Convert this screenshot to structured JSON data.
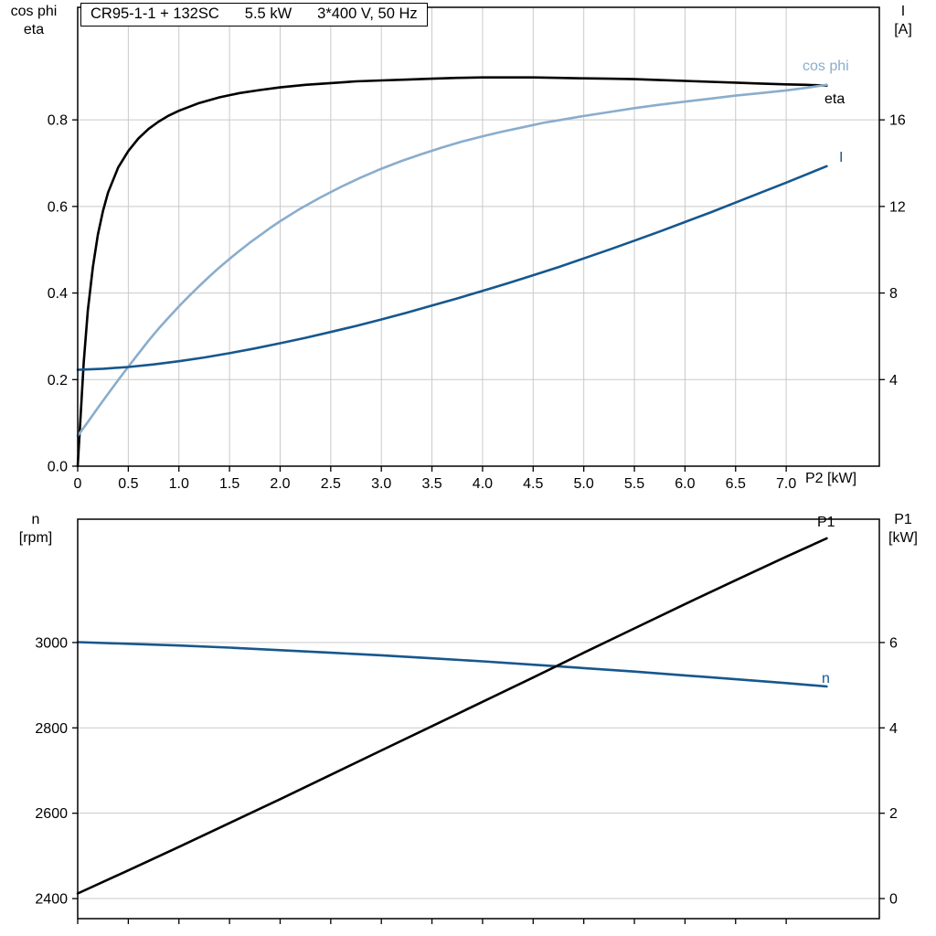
{
  "title_box": {
    "model": "CR95-1-1 + 132SC",
    "power": "5.5 kW",
    "supply": "3*400 V, 50 Hz"
  },
  "axis_headers": {
    "top_left_line1": "cos phi",
    "top_left_line2": "eta",
    "top_right_line1": "I",
    "top_right_line2": "[A]",
    "x_axis_label": "P2 [kW]",
    "bottom_left_line1": "n",
    "bottom_left_line2": "[rpm]",
    "bottom_right_line1": "P1",
    "bottom_right_line2": "[kW]"
  },
  "colors": {
    "eta": "#000000",
    "cos_phi": "#8aadcc",
    "current": "#16578e",
    "speed": "#16578e",
    "p1": "#000000",
    "grid": "#c9c9c9",
    "frame": "#000000",
    "background": "#ffffff"
  },
  "chart_data": [
    {
      "type": "line",
      "title": "CR95-1-1 + 132SC 5.5 kW 3*400 V, 50 Hz",
      "xlabel": "P2 [kW]",
      "x_range": [
        0,
        7.92
      ],
      "x_ticks": [
        0,
        0.5,
        1,
        1.5,
        2,
        2.5,
        3,
        3.5,
        4,
        4.5,
        5,
        5.5,
        6,
        6.5,
        7
      ],
      "x_tick_labels": [
        "0",
        "0.5",
        "1.0",
        "1.5",
        "2.0",
        "2.5",
        "3.0",
        "3.5",
        "4.0",
        "4.5",
        "5.0",
        "5.5",
        "6.0",
        "6.5",
        "7.0"
      ],
      "left_axis": {
        "label": "cos phi / eta",
        "range": [
          0,
          1.06
        ],
        "ticks": [
          0,
          0.2,
          0.4,
          0.6,
          0.8
        ],
        "tick_labels": [
          "0.0",
          "0.2",
          "0.4",
          "0.6",
          "0.8"
        ]
      },
      "right_axis": {
        "label": "I [A]",
        "range": [
          0,
          21.2
        ],
        "ticks": [
          4,
          8,
          12,
          16
        ],
        "tick_labels": [
          "4",
          "8",
          "12",
          "16"
        ]
      },
      "grid": {
        "vertical": true,
        "horizontal": true
      },
      "legend_position": "right-inline",
      "series": [
        {
          "name": "eta",
          "axis": "left",
          "color": "#000000",
          "points": [
            [
              0,
              0
            ],
            [
              0.03,
              0.12
            ],
            [
              0.06,
              0.24
            ],
            [
              0.1,
              0.36
            ],
            [
              0.15,
              0.46
            ],
            [
              0.2,
              0.535
            ],
            [
              0.25,
              0.59
            ],
            [
              0.3,
              0.632
            ],
            [
              0.4,
              0.69
            ],
            [
              0.5,
              0.728
            ],
            [
              0.6,
              0.757
            ],
            [
              0.7,
              0.779
            ],
            [
              0.8,
              0.796
            ],
            [
              0.9,
              0.81
            ],
            [
              1,
              0.821
            ],
            [
              1.2,
              0.839
            ],
            [
              1.4,
              0.852
            ],
            [
              1.6,
              0.862
            ],
            [
              1.8,
              0.869
            ],
            [
              2,
              0.875
            ],
            [
              2.25,
              0.881
            ],
            [
              2.5,
              0.885
            ],
            [
              2.75,
              0.889
            ],
            [
              3,
              0.891
            ],
            [
              3.25,
              0.893
            ],
            [
              3.5,
              0.895
            ],
            [
              3.75,
              0.897
            ],
            [
              4,
              0.898
            ],
            [
              4.25,
              0.898
            ],
            [
              4.5,
              0.898
            ],
            [
              4.75,
              0.897
            ],
            [
              5,
              0.896
            ],
            [
              5.25,
              0.895
            ],
            [
              5.5,
              0.894
            ],
            [
              5.75,
              0.892
            ],
            [
              6,
              0.89
            ],
            [
              6.25,
              0.888
            ],
            [
              6.5,
              0.886
            ],
            [
              6.75,
              0.884
            ],
            [
              7,
              0.882
            ],
            [
              7.2,
              0.881
            ],
            [
              7.4,
              0.879
            ]
          ]
        },
        {
          "name": "cos phi",
          "axis": "left",
          "color": "#8aadcc",
          "points": [
            [
              0,
              0.07
            ],
            [
              0.1,
              0.102
            ],
            [
              0.2,
              0.135
            ],
            [
              0.3,
              0.167
            ],
            [
              0.4,
              0.199
            ],
            [
              0.5,
              0.23
            ],
            [
              0.6,
              0.26
            ],
            [
              0.7,
              0.29
            ],
            [
              0.8,
              0.318
            ],
            [
              0.9,
              0.344
            ],
            [
              1,
              0.369
            ],
            [
              1.1,
              0.393
            ],
            [
              1.2,
              0.416
            ],
            [
              1.3,
              0.438
            ],
            [
              1.4,
              0.459
            ],
            [
              1.5,
              0.479
            ],
            [
              1.6,
              0.498
            ],
            [
              1.7,
              0.516
            ],
            [
              1.8,
              0.533
            ],
            [
              1.9,
              0.55
            ],
            [
              2,
              0.566
            ],
            [
              2.2,
              0.595
            ],
            [
              2.4,
              0.621
            ],
            [
              2.6,
              0.645
            ],
            [
              2.8,
              0.667
            ],
            [
              3,
              0.687
            ],
            [
              3.2,
              0.705
            ],
            [
              3.4,
              0.721
            ],
            [
              3.6,
              0.736
            ],
            [
              3.8,
              0.75
            ],
            [
              4,
              0.762
            ],
            [
              4.2,
              0.773
            ],
            [
              4.4,
              0.783
            ],
            [
              4.6,
              0.793
            ],
            [
              4.8,
              0.801
            ],
            [
              5,
              0.809
            ],
            [
              5.25,
              0.818
            ],
            [
              5.5,
              0.827
            ],
            [
              5.75,
              0.835
            ],
            [
              6,
              0.842
            ],
            [
              6.25,
              0.849
            ],
            [
              6.5,
              0.856
            ],
            [
              6.75,
              0.862
            ],
            [
              7,
              0.868
            ],
            [
              7.2,
              0.874
            ],
            [
              7.4,
              0.881
            ]
          ]
        },
        {
          "name": "I",
          "axis": "right",
          "color": "#16578e",
          "points": [
            [
              0,
              4.45
            ],
            [
              0.25,
              4.5
            ],
            [
              0.5,
              4.58
            ],
            [
              0.75,
              4.7
            ],
            [
              1,
              4.85
            ],
            [
              1.25,
              5.02
            ],
            [
              1.5,
              5.22
            ],
            [
              1.75,
              5.44
            ],
            [
              2,
              5.68
            ],
            [
              2.25,
              5.93
            ],
            [
              2.5,
              6.2
            ],
            [
              2.75,
              6.48
            ],
            [
              3,
              6.78
            ],
            [
              3.25,
              7.09
            ],
            [
              3.5,
              7.42
            ],
            [
              3.75,
              7.75
            ],
            [
              4,
              8.1
            ],
            [
              4.25,
              8.45
            ],
            [
              4.5,
              8.82
            ],
            [
              4.75,
              9.2
            ],
            [
              5,
              9.6
            ],
            [
              5.25,
              10
            ],
            [
              5.5,
              10.42
            ],
            [
              5.75,
              10.84
            ],
            [
              6,
              11.28
            ],
            [
              6.25,
              11.72
            ],
            [
              6.5,
              12.18
            ],
            [
              6.75,
              12.64
            ],
            [
              7,
              13.1
            ],
            [
              7.2,
              13.48
            ],
            [
              7.4,
              13.86
            ]
          ]
        }
      ]
    },
    {
      "type": "line",
      "title": "",
      "xlabel": "",
      "x_range": [
        0,
        7.92
      ],
      "x_ticks": [
        0,
        0.5,
        1,
        1.5,
        2,
        2.5,
        3,
        3.5,
        4,
        4.5,
        5,
        5.5,
        6,
        6.5,
        7
      ],
      "x_tick_labels": [],
      "left_axis": {
        "label": "n [rpm]",
        "range": [
          2353,
          3289
        ],
        "ticks": [
          2400,
          2600,
          2800,
          3000
        ],
        "tick_labels": [
          "2400",
          "2600",
          "2800",
          "3000"
        ]
      },
      "right_axis": {
        "label": "P1 [kW]",
        "range": [
          -0.47,
          8.89
        ],
        "ticks": [
          0,
          2,
          4,
          6
        ],
        "tick_labels": [
          "0",
          "2",
          "4",
          "6"
        ]
      },
      "grid": {
        "vertical": false,
        "horizontal": true
      },
      "legend_position": "right-inline",
      "series": [
        {
          "name": "n",
          "axis": "left",
          "color": "#16578e",
          "points": [
            [
              0,
              3001
            ],
            [
              0.5,
              2997
            ],
            [
              1,
              2993
            ],
            [
              1.5,
              2988
            ],
            [
              2,
              2982
            ],
            [
              2.5,
              2976
            ],
            [
              3,
              2970
            ],
            [
              3.5,
              2963
            ],
            [
              4,
              2956
            ],
            [
              4.5,
              2948
            ],
            [
              5,
              2940
            ],
            [
              5.5,
              2932
            ],
            [
              6,
              2923
            ],
            [
              6.5,
              2914
            ],
            [
              7,
              2905
            ],
            [
              7.4,
              2897
            ]
          ]
        },
        {
          "name": "P1",
          "axis": "right",
          "color": "#000000",
          "points": [
            [
              0,
              0.12
            ],
            [
              0.5,
              0.66
            ],
            [
              1,
              1.21
            ],
            [
              1.5,
              1.77
            ],
            [
              2,
              2.33
            ],
            [
              2.5,
              2.9
            ],
            [
              3,
              3.47
            ],
            [
              3.5,
              4.04
            ],
            [
              4,
              4.61
            ],
            [
              4.5,
              5.18
            ],
            [
              5,
              5.76
            ],
            [
              5.5,
              6.33
            ],
            [
              6,
              6.9
            ],
            [
              6.5,
              7.46
            ],
            [
              7,
              8.01
            ],
            [
              7.4,
              8.44
            ]
          ]
        }
      ]
    }
  ]
}
